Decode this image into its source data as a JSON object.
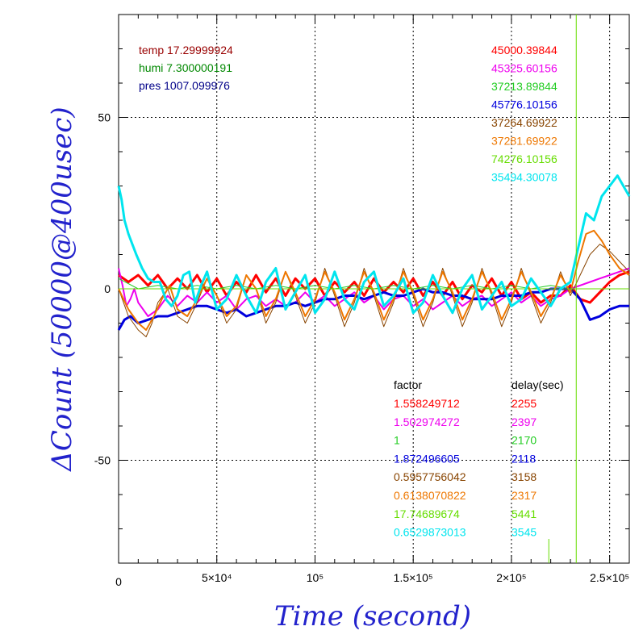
{
  "chart_data": {
    "type": "line",
    "xlabel": "Time (second)",
    "ylabel": "ΔCount (50000@400usec)",
    "xlim": [
      0,
      260000
    ],
    "ylim": [
      -80,
      80
    ],
    "x_ticks": [
      {
        "value": 0,
        "label": "0"
      },
      {
        "value": 50000,
        "label": "5×10⁴"
      },
      {
        "value": 100000,
        "label": "10⁵"
      },
      {
        "value": 150000,
        "label": "1.5×10⁵"
      },
      {
        "value": 200000,
        "label": "2×10⁵"
      },
      {
        "value": 250000,
        "label": "2.5×10⁵"
      }
    ],
    "y_ticks": [
      {
        "value": 50,
        "label": "50"
      },
      {
        "value": 0,
        "label": "0"
      },
      {
        "value": -50,
        "label": "-50"
      }
    ],
    "grid": true,
    "vertical_marker": {
      "x": 233000,
      "color": "#66dd00"
    },
    "env": [
      {
        "text": "temp 17.29999924",
        "color": "#990000"
      },
      {
        "text": "humi 7.300000191",
        "color": "#008800"
      },
      {
        "text": "pres 1007.099976",
        "color": "#000088"
      }
    ],
    "legend_headers": {
      "factor": "factor",
      "delay": "delay(sec)"
    },
    "series": [
      {
        "name": "45000.39844",
        "color": "#ff0000",
        "factor": "1.558249712",
        "delay": "2255",
        "width": 3,
        "x": [
          0,
          5000,
          10000,
          15000,
          20000,
          25000,
          30000,
          35000,
          40000,
          45000,
          50000,
          55000,
          60000,
          65000,
          70000,
          75000,
          80000,
          85000,
          90000,
          95000,
          100000,
          105000,
          110000,
          115000,
          120000,
          125000,
          130000,
          135000,
          140000,
          145000,
          150000,
          155000,
          160000,
          165000,
          170000,
          175000,
          180000,
          185000,
          190000,
          195000,
          200000,
          205000,
          210000,
          215000,
          220000,
          225000,
          230000,
          235000,
          240000,
          245000,
          250000,
          255000,
          260000
        ],
        "y": [
          4,
          2,
          4,
          1,
          4,
          0,
          3,
          0,
          4,
          -1,
          3,
          -2,
          2,
          -1,
          4,
          -1,
          3,
          -2,
          3,
          0,
          3,
          -2,
          2,
          -1,
          2,
          -2,
          3,
          -1,
          2,
          -1,
          3,
          -2,
          2,
          -2,
          2,
          -3,
          1,
          -1,
          3,
          -2,
          2,
          -3,
          -1,
          -4,
          -2,
          -2,
          1,
          -3,
          -4,
          -1,
          2,
          4,
          5
        ]
      },
      {
        "name": "45325.60156",
        "color": "#ee00ee",
        "factor": "1.502974272",
        "delay": "2397",
        "width": 2,
        "x": [
          0,
          2000,
          4000,
          6000,
          8000,
          10000,
          15000,
          20000,
          25000,
          30000,
          35000,
          40000,
          45000,
          50000,
          55000,
          60000,
          65000,
          70000,
          75000,
          80000,
          85000,
          90000,
          95000,
          100000,
          105000,
          110000,
          115000,
          120000,
          125000,
          130000,
          135000,
          140000,
          145000,
          150000,
          155000,
          160000,
          165000,
          170000,
          175000,
          180000,
          185000,
          190000,
          195000,
          200000,
          205000,
          210000,
          215000,
          220000,
          225000,
          230000,
          235000,
          240000,
          245000,
          250000,
          255000,
          260000
        ],
        "y": [
          6,
          1,
          -5,
          -3,
          0,
          -4,
          -8,
          -6,
          -2,
          -5,
          -2,
          -4,
          -1,
          -4,
          -2,
          -6,
          -3,
          -2,
          -5,
          -3,
          -5,
          -4,
          -1,
          -4,
          -2,
          -5,
          -3,
          -1,
          -4,
          -2,
          -6,
          -3,
          -2,
          -5,
          -3,
          -6,
          -4,
          -2,
          -5,
          -3,
          -2,
          -5,
          -3,
          -1,
          -4,
          -2,
          -5,
          -3,
          -2,
          0,
          1,
          2,
          3,
          4,
          5,
          6
        ]
      },
      {
        "name": "37213.89844",
        "color": "#22cc22",
        "factor": "1",
        "delay": "2170",
        "width": 1,
        "x": [
          0,
          10000,
          20000,
          30000,
          40000,
          50000,
          60000,
          70000,
          80000,
          90000,
          100000,
          110000,
          120000,
          130000,
          140000,
          150000,
          160000,
          170000,
          180000,
          190000,
          200000,
          210000,
          220000,
          230000,
          240000,
          250000,
          260000
        ],
        "y": [
          3,
          0,
          1,
          0,
          1,
          0,
          1,
          0,
          1,
          0,
          1,
          0,
          1,
          0,
          1,
          0,
          1,
          0,
          1,
          0,
          1,
          0,
          1,
          0,
          0,
          0,
          0
        ]
      },
      {
        "name": "45776.10156",
        "color": "#0000dd",
        "factor": "1.872496605",
        "delay": "2118",
        "width": 3,
        "x": [
          0,
          3000,
          6000,
          10000,
          15000,
          20000,
          25000,
          30000,
          35000,
          40000,
          45000,
          50000,
          55000,
          60000,
          65000,
          70000,
          75000,
          80000,
          85000,
          90000,
          95000,
          100000,
          105000,
          110000,
          115000,
          120000,
          125000,
          130000,
          135000,
          140000,
          145000,
          150000,
          155000,
          160000,
          165000,
          170000,
          175000,
          180000,
          185000,
          190000,
          195000,
          200000,
          205000,
          210000,
          215000,
          220000,
          225000,
          230000,
          235000,
          240000,
          245000,
          250000,
          255000,
          260000
        ],
        "y": [
          -12,
          -9,
          -8,
          -10,
          -9,
          -8,
          -8,
          -7,
          -6,
          -5,
          -5,
          -6,
          -7,
          -6,
          -8,
          -7,
          -6,
          -5,
          -5,
          -4,
          -5,
          -4,
          -3,
          -3,
          -2,
          -2,
          -3,
          -2,
          -1,
          -2,
          -2,
          -1,
          0,
          -1,
          -1,
          -2,
          -2,
          -3,
          -3,
          -3,
          -2,
          -2,
          -2,
          -1,
          -1,
          0,
          0,
          0,
          -3,
          -9,
          -8,
          -6,
          -5,
          -5
        ]
      },
      {
        "name": "37264.69922",
        "color": "#884400",
        "factor": "0.5957756042",
        "delay": "3158",
        "width": 1,
        "x": [
          0,
          5000,
          10000,
          14000,
          17000,
          20000,
          25000,
          30000,
          35000,
          40000,
          45000,
          50000,
          55000,
          60000,
          65000,
          70000,
          75000,
          80000,
          85000,
          90000,
          95000,
          100000,
          105000,
          110000,
          115000,
          120000,
          125000,
          130000,
          135000,
          140000,
          145000,
          150000,
          155000,
          160000,
          165000,
          170000,
          175000,
          180000,
          185000,
          190000,
          195000,
          200000,
          205000,
          210000,
          215000,
          220000,
          225000,
          230000,
          235000,
          240000,
          245000,
          250000,
          255000,
          260000
        ],
        "y": [
          0,
          -8,
          -12,
          -14,
          -10,
          -4,
          0,
          -8,
          -10,
          -4,
          3,
          -2,
          -10,
          -6,
          4,
          0,
          -10,
          -4,
          5,
          -2,
          -10,
          -4,
          6,
          -2,
          -11,
          -4,
          6,
          -2,
          -11,
          -4,
          6,
          -2,
          -11,
          -4,
          6,
          -2,
          -11,
          -4,
          6,
          -2,
          -11,
          -4,
          6,
          -2,
          -10,
          -4,
          5,
          -2,
          4,
          10,
          13,
          11,
          8,
          5
        ]
      },
      {
        "name": "37281.69922",
        "color": "#ee7700",
        "factor": "0.6138070822",
        "delay": "2317",
        "width": 2,
        "x": [
          0,
          5000,
          10000,
          14000,
          18000,
          22000,
          26000,
          30000,
          35000,
          40000,
          45000,
          50000,
          55000,
          60000,
          65000,
          70000,
          75000,
          80000,
          85000,
          90000,
          95000,
          100000,
          105000,
          110000,
          115000,
          120000,
          125000,
          130000,
          135000,
          140000,
          145000,
          150000,
          155000,
          160000,
          165000,
          170000,
          175000,
          180000,
          185000,
          190000,
          195000,
          200000,
          205000,
          210000,
          215000,
          220000,
          225000,
          230000,
          234000,
          238000,
          242000,
          246000,
          250000,
          255000,
          260000
        ],
        "y": [
          0,
          -6,
          -10,
          -12,
          -8,
          -3,
          1,
          -6,
          -8,
          -3,
          3,
          -2,
          -8,
          -5,
          4,
          0,
          -8,
          -3,
          5,
          -1,
          -8,
          -3,
          5,
          -1,
          -9,
          -3,
          5,
          -1,
          -9,
          -3,
          5,
          -1,
          -9,
          -3,
          5,
          -1,
          -9,
          -3,
          5,
          -1,
          -9,
          -3,
          5,
          -1,
          -8,
          -3,
          4,
          -1,
          8,
          16,
          17,
          14,
          10,
          6,
          4
        ]
      },
      {
        "name": "74276.10156",
        "color": "#66dd00",
        "factor": "17.74689674",
        "delay": "5441",
        "width": 1,
        "x": [
          0,
          20000,
          40000,
          60000,
          80000,
          100000,
          120000,
          140000,
          160000,
          180000,
          200000,
          220000,
          233000,
          240000,
          250000,
          260000
        ],
        "y": [
          0,
          0,
          0,
          0,
          0,
          0,
          0,
          0,
          0,
          0,
          0,
          0,
          0,
          0,
          0,
          0
        ]
      },
      {
        "name": "35494.30078",
        "color": "#00e5ee",
        "factor": "0.6529873013",
        "delay": "3545",
        "width": 3,
        "x": [
          0,
          1500,
          3000,
          5000,
          7000,
          9000,
          12000,
          15000,
          18000,
          21000,
          24000,
          27000,
          30000,
          33000,
          36000,
          39000,
          42000,
          45000,
          50000,
          55000,
          60000,
          65000,
          70000,
          75000,
          80000,
          85000,
          90000,
          95000,
          100000,
          105000,
          110000,
          115000,
          120000,
          125000,
          130000,
          135000,
          140000,
          145000,
          150000,
          155000,
          160000,
          165000,
          170000,
          175000,
          180000,
          185000,
          190000,
          195000,
          200000,
          205000,
          210000,
          215000,
          220000,
          225000,
          230000,
          234000,
          238000,
          242000,
          246000,
          250000,
          254000,
          258000,
          260000
        ],
        "y": [
          30,
          26,
          20,
          16,
          13,
          10,
          6,
          3,
          2,
          2,
          -3,
          -5,
          -2,
          4,
          5,
          -4,
          1,
          5,
          -6,
          -3,
          4,
          -2,
          -7,
          2,
          6,
          -6,
          -1,
          4,
          -7,
          -3,
          5,
          -3,
          -6,
          2,
          5,
          -5,
          -2,
          3,
          -7,
          -4,
          4,
          -2,
          -7,
          0,
          4,
          -6,
          -2,
          2,
          -5,
          -3,
          3,
          -1,
          -5,
          0,
          2,
          12,
          22,
          20,
          27,
          30,
          33,
          29,
          27
        ]
      }
    ]
  }
}
